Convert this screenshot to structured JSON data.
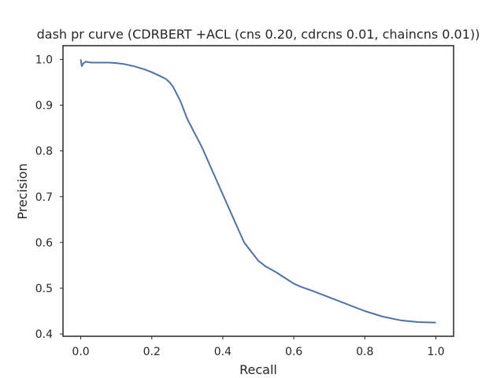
{
  "chart_data": {
    "type": "line",
    "title": "dash pr curve (CDRBERT +ACL (cns 0.20, cdrcns 0.01, chaincns 0.01))",
    "xlabel": "Recall",
    "ylabel": "Precision",
    "xlim": [
      -0.05,
      1.05
    ],
    "ylim": [
      0.395,
      1.03
    ],
    "xticks": [
      "0.0",
      "0.2",
      "0.4",
      "0.6",
      "0.8",
      "1.0"
    ],
    "yticks": [
      "0.4",
      "0.5",
      "0.6",
      "0.7",
      "0.8",
      "0.9",
      "1.0"
    ],
    "grid": false,
    "legend": "none",
    "colors": {
      "line": "#4c72b0",
      "axes": "#262626",
      "text": "#262626"
    },
    "series": [
      {
        "x": [
          0.0,
          0.003,
          0.006,
          0.01,
          0.015,
          0.02,
          0.03,
          0.05,
          0.08,
          0.1,
          0.12,
          0.15,
          0.18,
          0.2,
          0.22,
          0.24,
          0.25,
          0.26,
          0.27,
          0.28,
          0.29,
          0.3,
          0.32,
          0.34,
          0.36,
          0.38,
          0.4,
          0.42,
          0.44,
          0.46,
          0.48,
          0.5,
          0.52,
          0.55,
          0.58,
          0.6,
          0.62,
          0.65,
          0.7,
          0.75,
          0.8,
          0.85,
          0.9,
          0.95,
          1.0
        ],
        "y": [
          1.0,
          0.985,
          0.99,
          0.993,
          0.995,
          0.994,
          0.993,
          0.993,
          0.993,
          0.992,
          0.99,
          0.985,
          0.978,
          0.972,
          0.965,
          0.957,
          0.95,
          0.94,
          0.925,
          0.91,
          0.89,
          0.87,
          0.84,
          0.81,
          0.775,
          0.74,
          0.705,
          0.67,
          0.635,
          0.6,
          0.58,
          0.56,
          0.548,
          0.535,
          0.52,
          0.51,
          0.503,
          0.495,
          0.48,
          0.465,
          0.45,
          0.438,
          0.43,
          0.426,
          0.425
        ]
      }
    ]
  }
}
